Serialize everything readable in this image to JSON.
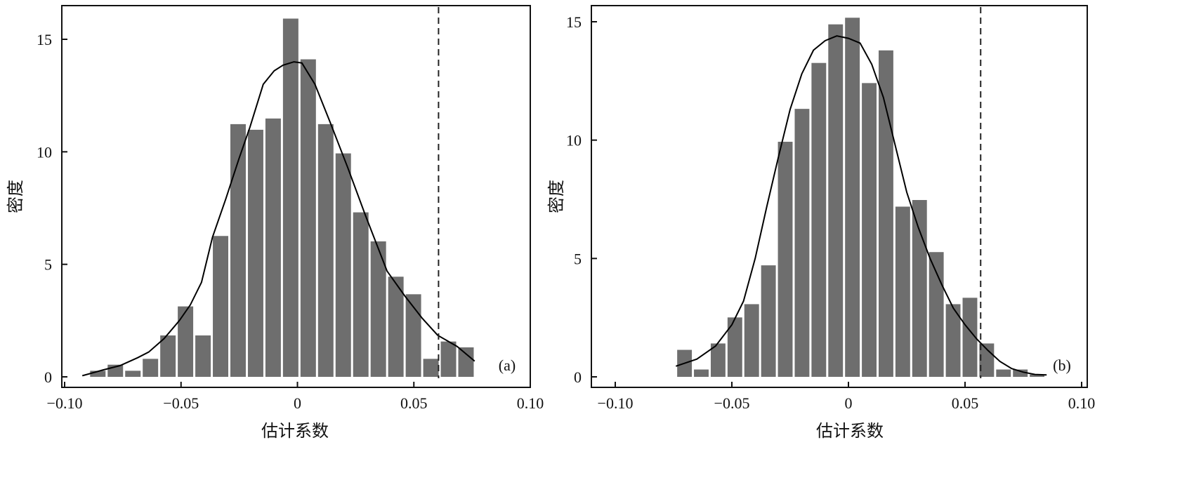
{
  "colors": {
    "bar": "#6e6e6e",
    "curve": "#000000",
    "axis": "#111111"
  },
  "chart_data": [
    {
      "type": "bar",
      "panel_label": "(a)",
      "xlabel": "估计系数",
      "ylabel": "密度",
      "xlim": [
        -0.1,
        0.1
      ],
      "ylim": [
        0,
        15
      ],
      "xticks": [
        -0.1,
        -0.05,
        0,
        0.05,
        0.1
      ],
      "xtick_labels": [
        "−0.10",
        "−0.05",
        "0",
        "0.05",
        "0.10"
      ],
      "yticks": [
        0,
        5,
        10,
        15
      ],
      "ytick_labels": [
        "0",
        "5",
        "10",
        "15"
      ],
      "bins": {
        "start": -0.0895,
        "width": 0.00753
      },
      "values": [
        0.27,
        0.54,
        0.27,
        0.8,
        1.84,
        3.13,
        1.84,
        6.26,
        11.23,
        10.98,
        11.48,
        15.92,
        14.11,
        11.23,
        9.93,
        7.31,
        6.02,
        4.45,
        3.67,
        0.8,
        1.57,
        1.31
      ],
      "density_curve": [
        [
          -0.0924,
          0.05
        ],
        [
          -0.0837,
          0.3
        ],
        [
          -0.0762,
          0.5
        ],
        [
          -0.0686,
          0.85
        ],
        [
          -0.0639,
          1.1
        ],
        [
          -0.0573,
          1.7
        ],
        [
          -0.0507,
          2.5
        ],
        [
          -0.046,
          3.2
        ],
        [
          -0.0412,
          4.2
        ],
        [
          -0.0365,
          6.2
        ],
        [
          -0.0308,
          7.9
        ],
        [
          -0.0251,
          9.7
        ],
        [
          -0.0204,
          11.1
        ],
        [
          -0.0147,
          13.0
        ],
        [
          -0.01,
          13.6
        ],
        [
          -0.0062,
          13.85
        ],
        [
          -0.0015,
          14.0
        ],
        [
          0.0019,
          13.95
        ],
        [
          0.0075,
          13.0
        ],
        [
          0.0141,
          11.3
        ],
        [
          0.0216,
          9.3
        ],
        [
          0.0291,
          7.2
        ],
        [
          0.0385,
          4.7
        ],
        [
          0.0461,
          3.6
        ],
        [
          0.0536,
          2.6
        ],
        [
          0.0602,
          1.85
        ],
        [
          0.0686,
          1.35
        ],
        [
          0.0761,
          0.7
        ]
      ],
      "reference_line_x": 0.0606
    },
    {
      "type": "bar",
      "panel_label": "(b)",
      "xlabel": "估计系数",
      "ylabel": "密度",
      "xlim": [
        -0.1,
        0.1
      ],
      "ylim": [
        0,
        15
      ],
      "xticks": [
        -0.1,
        -0.05,
        0,
        0.05,
        0.1
      ],
      "xtick_labels": [
        "−0.10",
        "−0.05",
        "0",
        "0.05",
        "0.10"
      ],
      "yticks": [
        0,
        5,
        10,
        15
      ],
      "ytick_labels": [
        "0",
        "5",
        "10",
        "15"
      ],
      "bins": {
        "start": -0.0739,
        "width": 0.0072
      },
      "values": [
        1.14,
        0.31,
        1.41,
        2.51,
        3.07,
        4.71,
        9.93,
        11.32,
        13.26,
        14.89,
        15.17,
        12.41,
        13.79,
        7.19,
        7.47,
        5.27,
        3.07,
        3.34,
        1.41,
        0.31,
        0.31,
        0.1
      ],
      "density_curve": [
        [
          -0.074,
          0.45
        ],
        [
          -0.065,
          0.75
        ],
        [
          -0.057,
          1.3
        ],
        [
          -0.05,
          2.2
        ],
        [
          -0.045,
          3.2
        ],
        [
          -0.04,
          5.0
        ],
        [
          -0.035,
          7.2
        ],
        [
          -0.03,
          9.3
        ],
        [
          -0.025,
          11.3
        ],
        [
          -0.02,
          12.8
        ],
        [
          -0.015,
          13.8
        ],
        [
          -0.01,
          14.2
        ],
        [
          -0.005,
          14.4
        ],
        [
          0,
          14.3
        ],
        [
          0.005,
          14.1
        ],
        [
          0.01,
          13.2
        ],
        [
          0.015,
          11.8
        ],
        [
          0.02,
          9.8
        ],
        [
          0.025,
          7.8
        ],
        [
          0.03,
          6.3
        ],
        [
          0.035,
          5.0
        ],
        [
          0.04,
          3.9
        ],
        [
          0.045,
          2.9
        ],
        [
          0.05,
          2.2
        ],
        [
          0.055,
          1.6
        ],
        [
          0.06,
          1.1
        ],
        [
          0.065,
          0.65
        ],
        [
          0.07,
          0.35
        ],
        [
          0.075,
          0.2
        ],
        [
          0.08,
          0.1
        ],
        [
          0.085,
          0.08
        ]
      ],
      "reference_line_x": 0.0567
    }
  ]
}
